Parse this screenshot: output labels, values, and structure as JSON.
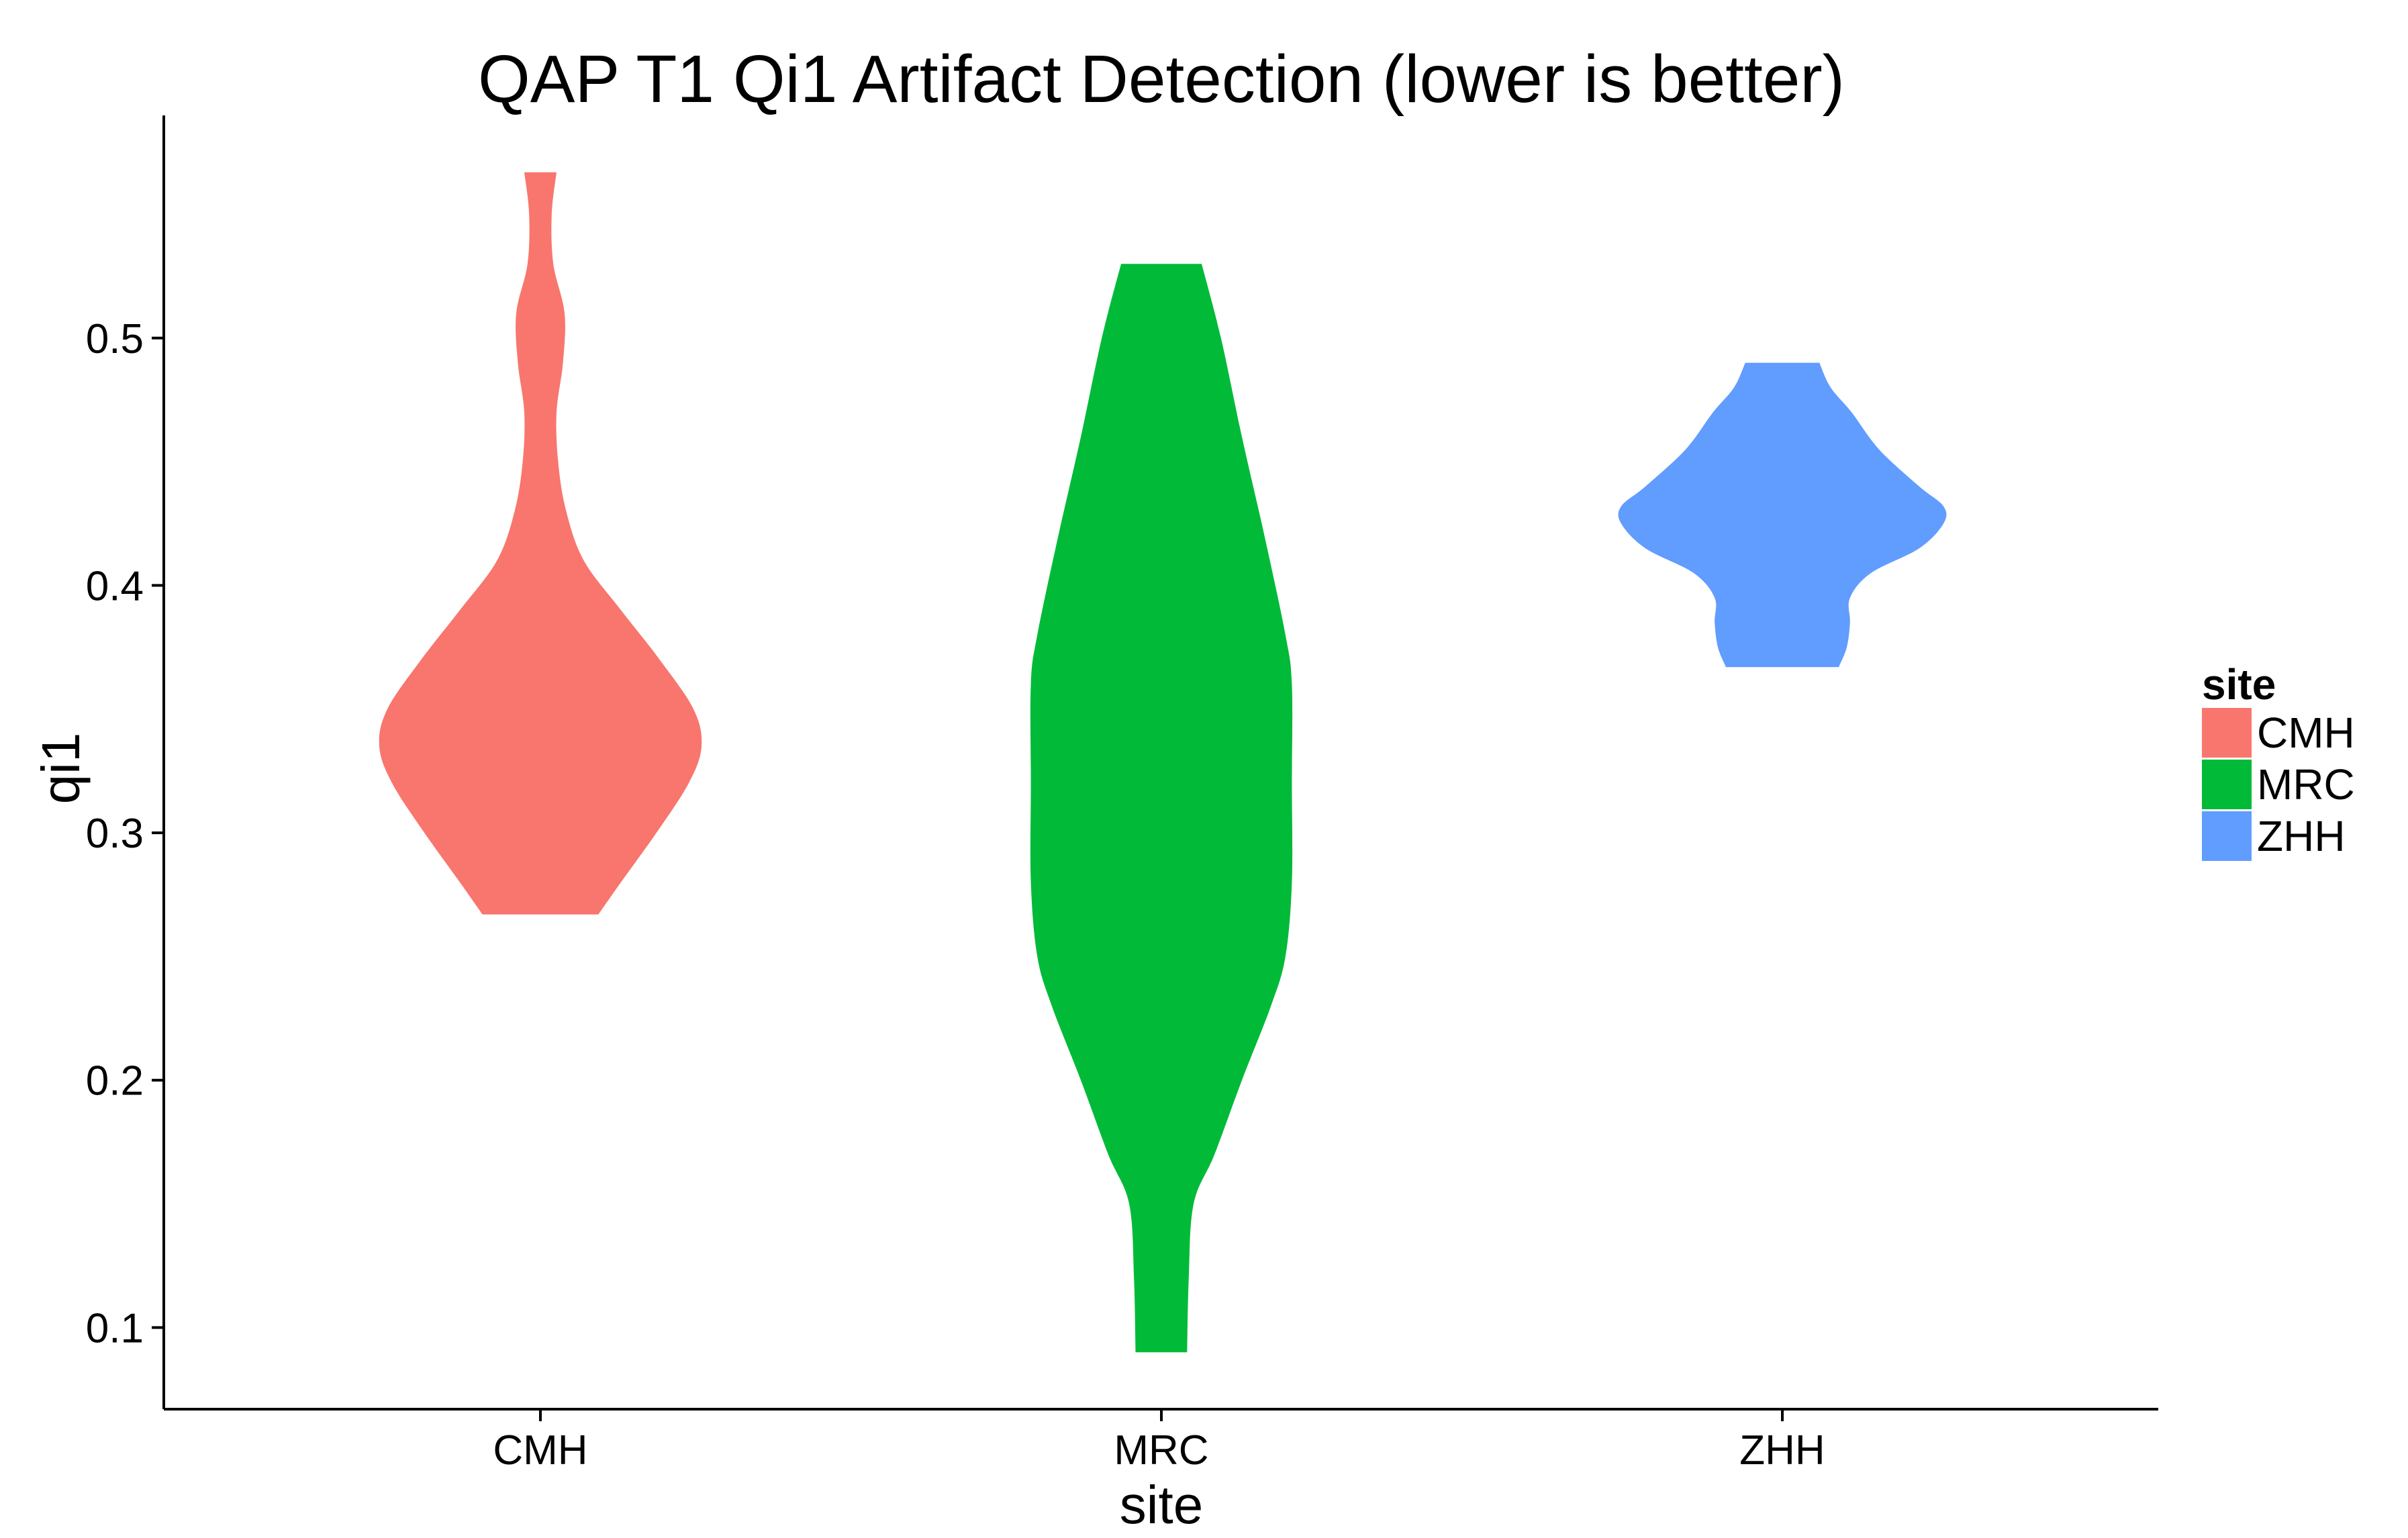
{
  "chart_data": {
    "type": "violin",
    "title": "QAP T1 Qi1 Artifact Detection (lower is better)",
    "xlabel": "site",
    "ylabel": "qi1",
    "categories": [
      "CMH",
      "MRC",
      "ZHH"
    ],
    "y_ticks": [
      0.1,
      0.2,
      0.3,
      0.4,
      0.5
    ],
    "y_tick_labels": [
      "0.1",
      "0.2",
      "0.3",
      "0.4",
      "0.5"
    ],
    "ylim": [
      0.067,
      0.59
    ],
    "grid": false,
    "legend": {
      "title": "site",
      "position": "right",
      "entries": [
        "CMH",
        "MRC",
        "ZHH"
      ]
    },
    "colors": {
      "CMH": "#F8766D",
      "MRC": "#00BA38",
      "ZHH": "#619CFF",
      "axis": "#000000"
    },
    "series": [
      {
        "name": "CMH",
        "min": 0.267,
        "max": 0.567,
        "density_profile": [
          [
            0.267,
            0.36
          ],
          [
            0.28,
            0.5
          ],
          [
            0.3,
            0.72
          ],
          [
            0.32,
            0.92
          ],
          [
            0.335,
            1.0
          ],
          [
            0.35,
            0.95
          ],
          [
            0.37,
            0.74
          ],
          [
            0.39,
            0.5
          ],
          [
            0.41,
            0.27
          ],
          [
            0.43,
            0.16
          ],
          [
            0.45,
            0.11
          ],
          [
            0.47,
            0.1
          ],
          [
            0.49,
            0.14
          ],
          [
            0.51,
            0.15
          ],
          [
            0.53,
            0.08
          ],
          [
            0.55,
            0.07
          ],
          [
            0.567,
            0.1
          ]
        ]
      },
      {
        "name": "MRC",
        "min": 0.09,
        "max": 0.53,
        "density_profile": [
          [
            0.09,
            0.16
          ],
          [
            0.12,
            0.17
          ],
          [
            0.15,
            0.2
          ],
          [
            0.17,
            0.33
          ],
          [
            0.2,
            0.5
          ],
          [
            0.23,
            0.68
          ],
          [
            0.25,
            0.77
          ],
          [
            0.28,
            0.81
          ],
          [
            0.32,
            0.81
          ],
          [
            0.36,
            0.81
          ],
          [
            0.38,
            0.77
          ],
          [
            0.42,
            0.64
          ],
          [
            0.46,
            0.5
          ],
          [
            0.5,
            0.37
          ],
          [
            0.53,
            0.25
          ]
        ]
      },
      {
        "name": "ZHH",
        "min": 0.367,
        "max": 0.49,
        "density_profile": [
          [
            0.367,
            0.35
          ],
          [
            0.375,
            0.4
          ],
          [
            0.385,
            0.42
          ],
          [
            0.395,
            0.42
          ],
          [
            0.405,
            0.55
          ],
          [
            0.415,
            0.85
          ],
          [
            0.425,
            1.0
          ],
          [
            0.432,
            1.0
          ],
          [
            0.44,
            0.85
          ],
          [
            0.455,
            0.6
          ],
          [
            0.47,
            0.43
          ],
          [
            0.48,
            0.3
          ],
          [
            0.49,
            0.23
          ]
        ]
      }
    ]
  }
}
